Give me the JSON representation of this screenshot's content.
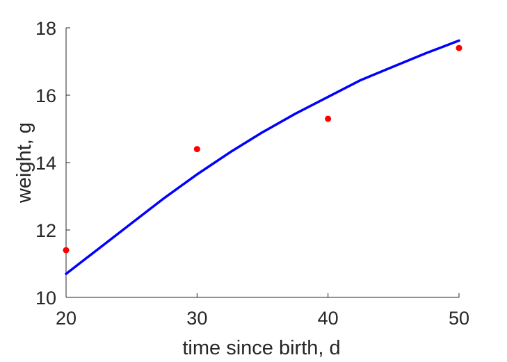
{
  "chart_data": {
    "type": "line",
    "title": "",
    "xlabel": "time since birth, d",
    "ylabel": "weight, g",
    "xlim": [
      20,
      50
    ],
    "ylim": [
      10,
      18
    ],
    "xticks": [
      20,
      30,
      40,
      50
    ],
    "yticks": [
      10,
      12,
      14,
      16,
      18
    ],
    "grid": false,
    "legend": "none",
    "series": [
      {
        "kind": "line",
        "color": "#0000ff",
        "x": [
          20,
          22.5,
          25,
          27.5,
          30,
          32.5,
          35,
          37.5,
          40,
          42.5,
          45,
          47.5,
          50
        ],
        "y": [
          10.7,
          11.45,
          12.2,
          12.95,
          13.65,
          14.3,
          14.9,
          15.45,
          15.95,
          16.45,
          16.85,
          17.25,
          17.62
        ]
      },
      {
        "kind": "scatter",
        "color": "#ff0000",
        "x": [
          20,
          30,
          40,
          50
        ],
        "y": [
          11.4,
          14.4,
          15.3,
          17.4
        ]
      }
    ]
  }
}
